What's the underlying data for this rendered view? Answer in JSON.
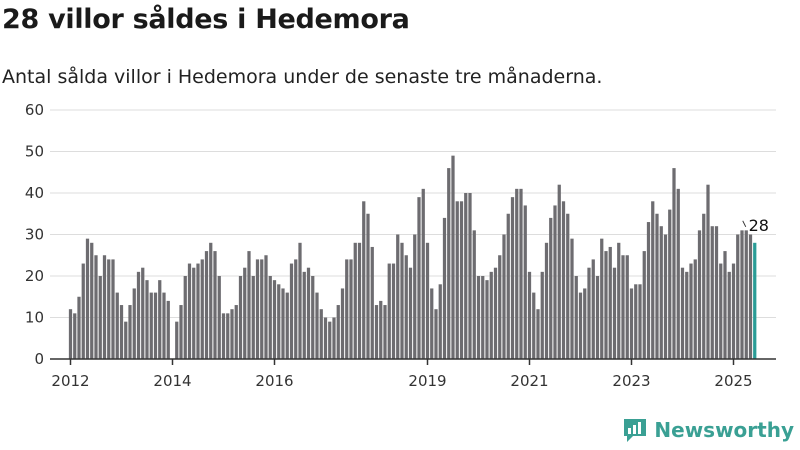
{
  "headline": "28 villor såldes i Hedemora",
  "subtitle": "Antal sålda villor i Hedemora under de senaste tre månaderna.",
  "brand": {
    "name": "Newsworthy",
    "color": "#3aa094",
    "icon": "newsworthy-logo-icon"
  },
  "colors": {
    "bar": "#6d6c70",
    "highlight": "#2a9c96",
    "grid": "#dddddd",
    "axis": "#333333"
  },
  "chart_data": {
    "type": "bar",
    "title": "28 villor såldes i Hedemora",
    "subtitle": "Antal sålda villor i Hedemora under de senaste tre månaderna.",
    "xlabel": "",
    "ylabel": "",
    "ylim": [
      0,
      60
    ],
    "yticks": [
      0,
      10,
      20,
      30,
      40,
      50,
      60
    ],
    "xlim": [
      "2011-11",
      "2025-11"
    ],
    "xticks": [
      {
        "label": "2012",
        "at": "2012-01"
      },
      {
        "label": "2014",
        "at": "2014-01"
      },
      {
        "label": "2016",
        "at": "2016-01"
      },
      {
        "label": "2019",
        "at": "2019-01"
      },
      {
        "label": "2021",
        "at": "2021-01"
      },
      {
        "label": "2023",
        "at": "2023-01"
      },
      {
        "label": "2025",
        "at": "2025-01"
      }
    ],
    "grid": true,
    "start_month": "2012-01",
    "values": [
      12,
      11,
      15,
      23,
      29,
      28,
      25,
      20,
      25,
      24,
      24,
      16,
      13,
      9,
      13,
      17,
      21,
      22,
      19,
      16,
      16,
      19,
      16,
      14,
      0,
      9,
      13,
      20,
      23,
      22,
      23,
      24,
      26,
      28,
      26,
      20,
      11,
      11,
      12,
      13,
      20,
      22,
      26,
      20,
      24,
      24,
      25,
      20,
      19,
      18,
      17,
      16,
      23,
      24,
      28,
      21,
      22,
      20,
      16,
      12,
      10,
      9,
      10,
      13,
      17,
      24,
      24,
      28,
      28,
      38,
      35,
      27,
      13,
      14,
      13,
      23,
      23,
      30,
      28,
      25,
      22,
      30,
      39,
      41,
      28,
      17,
      12,
      18,
      34,
      46,
      49,
      38,
      38,
      40,
      40,
      31,
      20,
      20,
      19,
      21,
      22,
      25,
      30,
      35,
      39,
      41,
      41,
      37,
      21,
      16,
      12,
      21,
      28,
      34,
      37,
      42,
      38,
      35,
      29,
      20,
      16,
      17,
      22,
      24,
      20,
      29,
      26,
      27,
      22,
      28,
      25,
      25,
      17,
      18,
      18,
      26,
      33,
      38,
      35,
      32,
      30,
      36,
      46,
      41,
      22,
      21,
      23,
      24,
      31,
      35,
      42,
      32,
      32,
      23,
      26,
      21,
      23,
      30,
      31,
      31,
      30,
      28
    ],
    "highlight_last": true,
    "data_labels": [
      {
        "label": "28",
        "value": 28,
        "series_index": "last"
      }
    ]
  }
}
